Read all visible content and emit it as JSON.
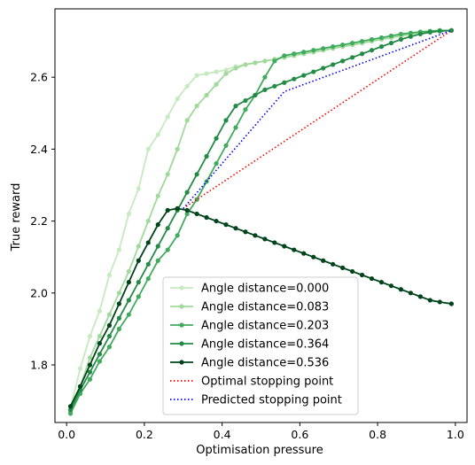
{
  "chart_data": {
    "type": "line",
    "title": "",
    "xlabel": "Optimisation pressure",
    "ylabel": "True reward",
    "xlim": [
      -0.03,
      1.03
    ],
    "ylim": [
      1.64,
      2.79
    ],
    "x_ticks": [
      0.0,
      0.2,
      0.4,
      0.6,
      0.8,
      1.0
    ],
    "x_tick_labels": [
      "0.0",
      "0.2",
      "0.4",
      "0.6",
      "0.8",
      "1.0"
    ],
    "y_ticks": [
      1.8,
      2.0,
      2.2,
      2.4,
      2.6
    ],
    "y_tick_labels": [
      "1.8",
      "2.0",
      "2.2",
      "2.4",
      "2.6"
    ],
    "grid": false,
    "legend_position": "bottom-center",
    "series": [
      {
        "name": "Angle distance=0.000",
        "color": "#c7e9c0",
        "marker": "circle",
        "x": [
          0.01,
          0.035,
          0.06,
          0.085,
          0.11,
          0.135,
          0.16,
          0.185,
          0.21,
          0.235,
          0.26,
          0.285,
          0.31,
          0.335,
          0.36,
          0.385,
          0.41,
          0.435,
          0.46,
          0.485,
          0.51,
          0.535,
          0.56,
          0.585,
          0.61,
          0.635,
          0.66,
          0.685,
          0.71,
          0.735,
          0.76,
          0.785,
          0.81,
          0.835,
          0.86,
          0.885,
          0.91,
          0.935,
          0.96,
          0.99
        ],
        "y": [
          1.68,
          1.79,
          1.88,
          1.95,
          2.05,
          2.12,
          2.22,
          2.29,
          2.4,
          2.44,
          2.49,
          2.54,
          2.575,
          2.605,
          2.61,
          2.615,
          2.62,
          2.63,
          2.635,
          2.64,
          2.645,
          2.65,
          2.655,
          2.66,
          2.665,
          2.67,
          2.675,
          2.68,
          2.685,
          2.69,
          2.695,
          2.7,
          2.705,
          2.71,
          2.715,
          2.72,
          2.725,
          2.728,
          2.73,
          2.73
        ]
      },
      {
        "name": "Angle distance=0.083",
        "color": "#a1d99b",
        "marker": "circle",
        "x": [
          0.01,
          0.035,
          0.06,
          0.085,
          0.11,
          0.135,
          0.16,
          0.185,
          0.21,
          0.235,
          0.26,
          0.285,
          0.31,
          0.335,
          0.36,
          0.385,
          0.41,
          0.435,
          0.46,
          0.485,
          0.51,
          0.535,
          0.56,
          0.585,
          0.61,
          0.635,
          0.66,
          0.685,
          0.71,
          0.735,
          0.76,
          0.785,
          0.81,
          0.835,
          0.86,
          0.885,
          0.91,
          0.935,
          0.96,
          0.99
        ],
        "y": [
          1.67,
          1.74,
          1.82,
          1.88,
          1.94,
          2.0,
          2.06,
          2.13,
          2.2,
          2.27,
          2.33,
          2.4,
          2.48,
          2.52,
          2.55,
          2.58,
          2.61,
          2.625,
          2.635,
          2.64,
          2.645,
          2.65,
          2.655,
          2.66,
          2.665,
          2.67,
          2.675,
          2.68,
          2.685,
          2.69,
          2.695,
          2.7,
          2.705,
          2.71,
          2.715,
          2.72,
          2.725,
          2.728,
          2.73,
          2.73
        ]
      },
      {
        "name": "Angle distance=0.203",
        "color": "#41ab5d",
        "marker": "circle",
        "x": [
          0.01,
          0.035,
          0.06,
          0.085,
          0.11,
          0.135,
          0.16,
          0.185,
          0.21,
          0.235,
          0.26,
          0.285,
          0.31,
          0.335,
          0.36,
          0.385,
          0.41,
          0.435,
          0.46,
          0.485,
          0.51,
          0.535,
          0.56,
          0.585,
          0.61,
          0.635,
          0.66,
          0.685,
          0.71,
          0.735,
          0.76,
          0.785,
          0.81,
          0.835,
          0.86,
          0.885,
          0.91,
          0.935,
          0.96,
          0.99
        ],
        "y": [
          1.665,
          1.72,
          1.76,
          1.81,
          1.85,
          1.9,
          1.94,
          1.99,
          2.04,
          2.09,
          2.12,
          2.16,
          2.22,
          2.26,
          2.31,
          2.36,
          2.41,
          2.46,
          2.51,
          2.55,
          2.6,
          2.645,
          2.66,
          2.665,
          2.67,
          2.675,
          2.68,
          2.685,
          2.69,
          2.695,
          2.7,
          2.705,
          2.71,
          2.715,
          2.72,
          2.723,
          2.726,
          2.728,
          2.73,
          2.73
        ]
      },
      {
        "name": "Angle distance=0.364",
        "color": "#238b45",
        "marker": "circle",
        "x": [
          0.01,
          0.035,
          0.06,
          0.085,
          0.11,
          0.135,
          0.16,
          0.185,
          0.21,
          0.235,
          0.26,
          0.285,
          0.31,
          0.335,
          0.36,
          0.385,
          0.41,
          0.435,
          0.46,
          0.485,
          0.51,
          0.535,
          0.56,
          0.585,
          0.61,
          0.635,
          0.66,
          0.685,
          0.71,
          0.735,
          0.76,
          0.785,
          0.81,
          0.835,
          0.86,
          0.885,
          0.91,
          0.935,
          0.96,
          0.99
        ],
        "y": [
          1.675,
          1.73,
          1.78,
          1.83,
          1.88,
          1.93,
          1.98,
          2.03,
          2.08,
          2.13,
          2.18,
          2.23,
          2.28,
          2.33,
          2.38,
          2.43,
          2.48,
          2.52,
          2.535,
          2.55,
          2.565,
          2.575,
          2.585,
          2.595,
          2.605,
          2.615,
          2.625,
          2.635,
          2.645,
          2.655,
          2.665,
          2.675,
          2.685,
          2.695,
          2.705,
          2.713,
          2.72,
          2.725,
          2.728,
          2.73
        ]
      },
      {
        "name": "Angle distance=0.536",
        "color": "#00441b",
        "marker": "circle",
        "x": [
          0.01,
          0.035,
          0.06,
          0.085,
          0.11,
          0.135,
          0.16,
          0.185,
          0.21,
          0.235,
          0.26,
          0.285,
          0.31,
          0.335,
          0.36,
          0.385,
          0.41,
          0.435,
          0.46,
          0.485,
          0.51,
          0.535,
          0.56,
          0.585,
          0.61,
          0.635,
          0.66,
          0.685,
          0.71,
          0.735,
          0.76,
          0.785,
          0.81,
          0.835,
          0.86,
          0.885,
          0.91,
          0.935,
          0.96,
          0.99
        ],
        "y": [
          1.685,
          1.74,
          1.8,
          1.86,
          1.91,
          1.97,
          2.03,
          2.09,
          2.14,
          2.19,
          2.23,
          2.235,
          2.23,
          2.22,
          2.21,
          2.2,
          2.19,
          2.18,
          2.17,
          2.16,
          2.15,
          2.14,
          2.13,
          2.12,
          2.11,
          2.1,
          2.09,
          2.08,
          2.07,
          2.06,
          2.05,
          2.04,
          2.03,
          2.02,
          2.01,
          2.0,
          1.99,
          1.98,
          1.975,
          1.97
        ]
      },
      {
        "name": "Optimal stopping point",
        "color": "#ff0000",
        "marker": "none",
        "linestyle": "dotted",
        "x": [
          0.3,
          0.99
        ],
        "y": [
          2.235,
          2.73
        ]
      },
      {
        "name": "Predicted stopping point",
        "color": "#0000ff",
        "marker": "none",
        "linestyle": "dotted",
        "x": [
          0.3,
          0.56,
          0.99
        ],
        "y": [
          2.235,
          2.56,
          2.73
        ]
      }
    ]
  }
}
